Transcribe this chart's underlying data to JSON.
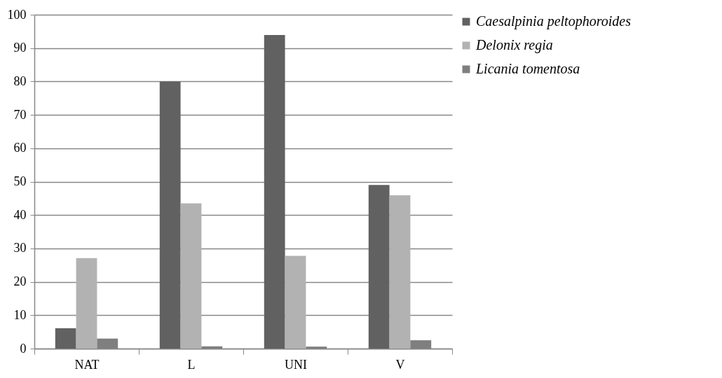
{
  "chart_data": {
    "type": "bar",
    "categories": [
      "NAT",
      "L",
      "UNI",
      "V"
    ],
    "series": [
      {
        "name": "Caesalpinia peltophoroides",
        "color": "#616161",
        "values": [
          6.1,
          80,
          93.9,
          49
        ]
      },
      {
        "name": "Delonix regia",
        "color": "#b2b2b2",
        "values": [
          27.1,
          43.5,
          27.8,
          45.9
        ]
      },
      {
        "name": "Licania tomentosa",
        "color": "#7f7f7f",
        "values": [
          3,
          0.7,
          0.6,
          2.5
        ]
      }
    ],
    "ylim": [
      0,
      100
    ],
    "yticks": [
      0,
      10,
      20,
      30,
      40,
      50,
      60,
      70,
      80,
      90,
      100
    ],
    "grid": "y",
    "legend": "right"
  }
}
